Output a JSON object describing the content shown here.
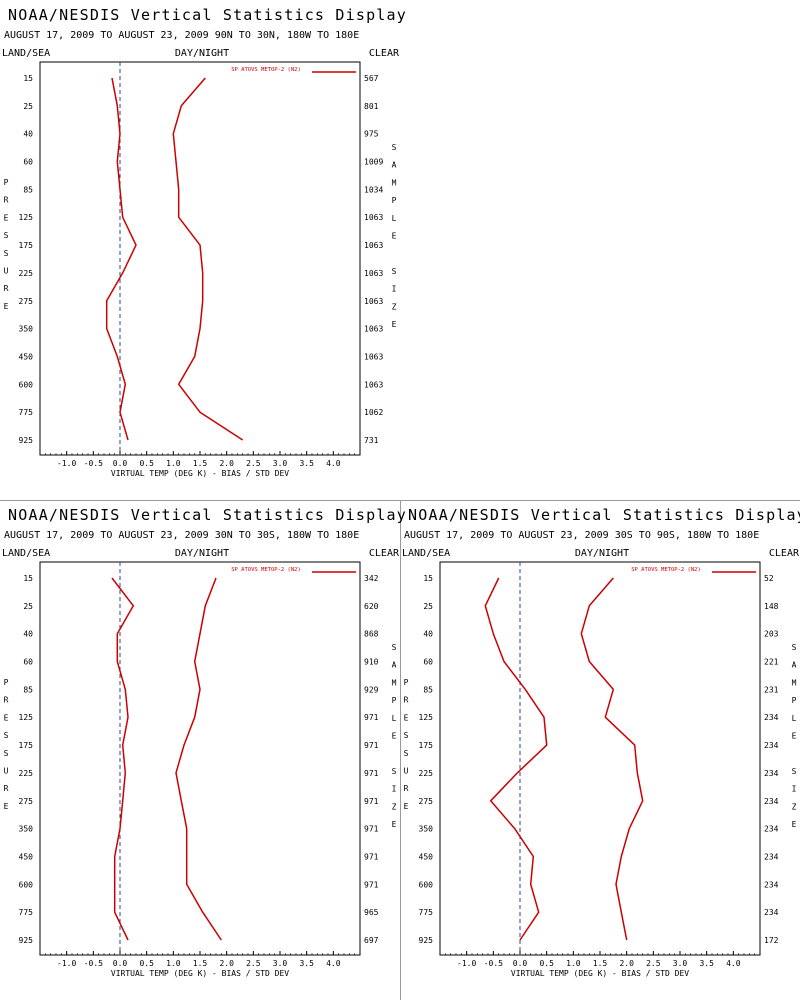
{
  "axis": {
    "x_ticks": [
      "-1.0",
      "-0.5",
      "0.0",
      "0.5",
      "1.0",
      "1.5",
      "2.0",
      "2.5",
      "3.0",
      "3.5",
      "4.0"
    ],
    "x_tick_values": [
      -1.0,
      -0.5,
      0.0,
      0.5,
      1.0,
      1.5,
      2.0,
      2.5,
      3.0,
      3.5,
      4.0
    ],
    "xlim": [
      -1.5,
      4.5
    ],
    "pressure_levels": [
      "15",
      "25",
      "40",
      "60",
      "85",
      "125",
      "175",
      "225",
      "275",
      "350",
      "450",
      "600",
      "775",
      "925"
    ],
    "pressure_values": [
      15,
      25,
      40,
      60,
      85,
      125,
      175,
      225,
      275,
      350,
      450,
      600,
      775,
      925
    ],
    "left_vertical_label": [
      "P",
      "R",
      "E",
      "S",
      "S",
      "U",
      "R",
      "E"
    ],
    "right_vertical_label": [
      "S",
      "A",
      "M",
      "P",
      "L",
      "E",
      "",
      "S",
      "I",
      "Z",
      "E"
    ]
  },
  "line_color": "#cc0000",
  "chart_data": [
    {
      "type": "line",
      "title": "NOAA/NESDIS Vertical Statistics Display",
      "subtitle": "AUGUST 17, 2009 TO AUGUST 23, 2009 90N TO 30N, 180W TO 180E",
      "header_left": "LAND/SEA",
      "header_center": "DAY/NIGHT",
      "header_right": "CLEAR",
      "legend": "SP ATOVS METOP-2 (N2)",
      "xlabel": "VIRTUAL TEMP (DEG K) - BIAS / STD DEV",
      "ylabel": "PRESSURE",
      "right_label": "SAMPLE SIZE",
      "grid": false,
      "sample_size": [
        "567",
        "801",
        "975",
        "1009",
        "1034",
        "1063",
        "1063",
        "1063",
        "1063",
        "1063",
        "1063",
        "1063",
        "1062",
        "731"
      ],
      "series": [
        {
          "values": [
            -0.15,
            -0.05,
            0.0,
            -0.05,
            0.0,
            0.05,
            0.3,
            0.05,
            -0.25,
            -0.25,
            -0.05,
            0.1,
            0.0,
            0.15
          ]
        },
        {
          "values": [
            1.6,
            1.15,
            1.0,
            1.05,
            1.1,
            1.1,
            1.5,
            1.55,
            1.55,
            1.5,
            1.4,
            1.1,
            1.5,
            2.3
          ]
        }
      ]
    },
    {
      "type": "line",
      "title": "NOAA/NESDIS Vertical Statistics Display",
      "subtitle": "AUGUST 17, 2009 TO AUGUST 23, 2009 30N TO 30S, 180W TO 180E",
      "header_left": "LAND/SEA",
      "header_center": "DAY/NIGHT",
      "header_right": "CLEAR",
      "legend": "SP ATOVS METOP-2 (N2)",
      "xlabel": "VIRTUAL TEMP (DEG K) - BIAS / STD DEV",
      "ylabel": "PRESSURE",
      "right_label": "SAMPLE SIZE",
      "grid": false,
      "sample_size": [
        "342",
        "620",
        "868",
        "910",
        "929",
        "971",
        "971",
        "971",
        "971",
        "971",
        "971",
        "971",
        "965",
        "697"
      ],
      "series": [
        {
          "values": [
            -0.15,
            0.25,
            -0.05,
            -0.05,
            0.1,
            0.15,
            0.05,
            0.1,
            0.05,
            0.0,
            -0.1,
            -0.1,
            -0.1,
            0.15
          ]
        },
        {
          "values": [
            1.8,
            1.6,
            1.5,
            1.4,
            1.5,
            1.4,
            1.2,
            1.05,
            1.15,
            1.25,
            1.25,
            1.25,
            1.55,
            1.9
          ]
        }
      ]
    },
    {
      "type": "line",
      "title": "NOAA/NESDIS Vertical Statistics Display",
      "subtitle": "AUGUST 17, 2009 TO AUGUST 23, 2009 30S TO 90S, 180W TO 180E",
      "header_left": "LAND/SEA",
      "header_center": "DAY/NIGHT",
      "header_right": "CLEAR",
      "legend": "SP ATOVS METOP-2 (N2)",
      "xlabel": "VIRTUAL TEMP (DEG K) - BIAS / STD DEV",
      "ylabel": "PRESSURE",
      "right_label": "SAMPLE SIZE",
      "grid": false,
      "sample_size": [
        "52",
        "148",
        "203",
        "221",
        "231",
        "234",
        "234",
        "234",
        "234",
        "234",
        "234",
        "234",
        "234",
        "172"
      ],
      "series": [
        {
          "values": [
            -0.4,
            -0.65,
            -0.5,
            -0.3,
            0.1,
            0.45,
            0.5,
            -0.05,
            -0.55,
            -0.1,
            0.25,
            0.2,
            0.35,
            0.0
          ]
        },
        {
          "values": [
            1.75,
            1.3,
            1.15,
            1.3,
            1.75,
            1.6,
            2.15,
            2.2,
            2.3,
            2.05,
            1.9,
            1.8,
            1.9,
            2.0
          ]
        }
      ]
    }
  ]
}
